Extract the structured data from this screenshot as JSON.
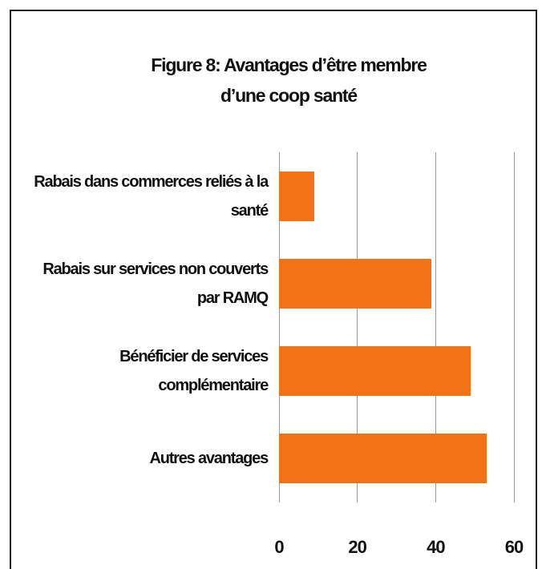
{
  "chart_data": {
    "type": "barh",
    "title": "Figure 8: Avantages d’être membre d’une coop santé",
    "categories": [
      "Rabais dans commerces reliés à la santé",
      "Rabais sur services non couverts par RAMQ",
      "Bénéficier de services complémentaire",
      "Autres avantages"
    ],
    "values": [
      9,
      39,
      49,
      53
    ],
    "color": "#f47216",
    "xlim": [
      0,
      60
    ],
    "xticks": [
      0,
      20,
      40,
      60
    ],
    "grid": true
  }
}
